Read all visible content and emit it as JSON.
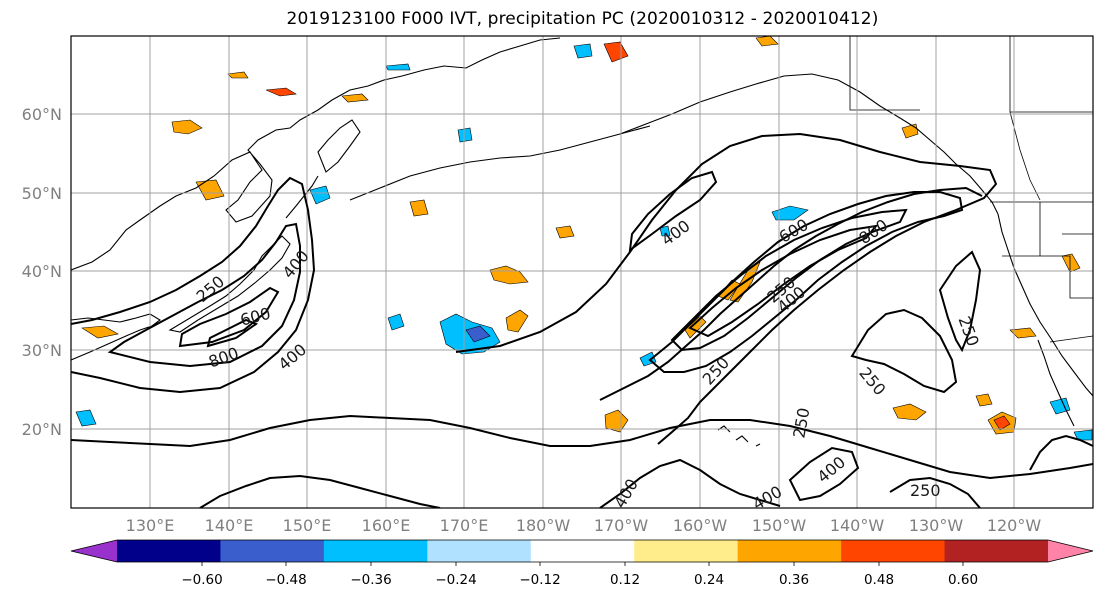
{
  "title": "2019123100 F000 IVT, precipitation PC (2020010312 - 2020010412)",
  "map": {
    "lat_ticks": [
      "20°N",
      "30°N",
      "40°N",
      "50°N",
      "60°N"
    ],
    "lon_ticks": [
      "130°E",
      "140°E",
      "150°E",
      "160°E",
      "170°E",
      "180°W",
      "170°W",
      "160°W",
      "150°W",
      "140°W",
      "130°W",
      "120°W"
    ],
    "ivt_contour_labels": [
      "250",
      "400",
      "600",
      "800",
      "250",
      "400",
      "400",
      "600",
      "800",
      "250",
      "400",
      "250",
      "250",
      "250",
      "400",
      "400",
      "400",
      "250"
    ]
  },
  "colorbar": {
    "ticks": [
      "−0.60",
      "−0.48",
      "−0.36",
      "−0.24",
      "−0.12",
      "0.12",
      "0.24",
      "0.36",
      "0.48",
      "0.60"
    ],
    "colors": [
      "#9932cc",
      "#00008b",
      "#3a5fcd",
      "#00bfff",
      "#b0e2ff",
      "#ffffff",
      "#ffec8b",
      "#ffa500",
      "#ff4500",
      "#b22222",
      "#ff83a8"
    ]
  },
  "chart_data": {
    "type": "map",
    "title": "2019123100 F000 IVT, precipitation PC (2020010312 - 2020010412)",
    "fields": [
      "IVT contours",
      "precipitation PC shading"
    ],
    "ivt_contour_levels": [
      250,
      400,
      600,
      800
    ],
    "pc_levels": [
      -0.6,
      -0.48,
      -0.36,
      -0.24,
      -0.12,
      0.12,
      0.24,
      0.36,
      0.48,
      0.6
    ],
    "lat_range": [
      "10°N",
      "70°N"
    ],
    "lon_range": [
      "120°E",
      "110°W"
    ]
  }
}
